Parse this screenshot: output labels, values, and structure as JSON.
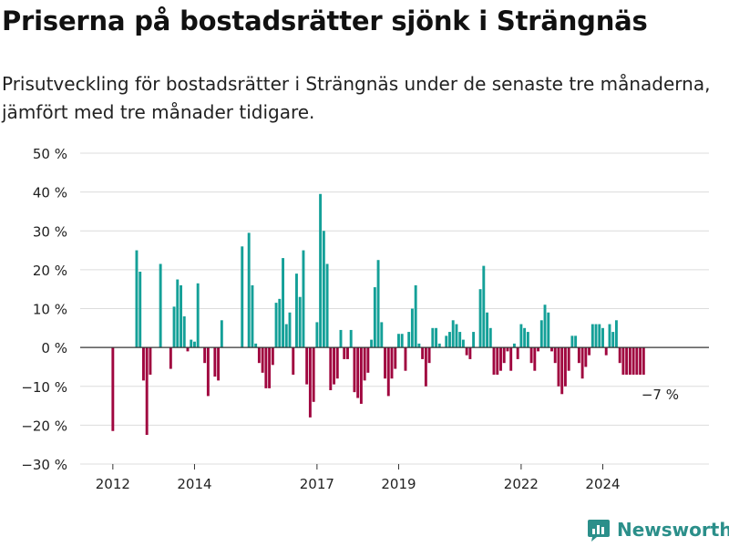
{
  "header": {
    "title": "Priserna på bostadsrätter sjönk i Strängnäs",
    "subtitle": "Prisutveckling för bostadsrätter i Strängnäs under de senaste tre månaderna, jämfört med tre månader tidigare."
  },
  "brand": {
    "label": "Newsworthy",
    "icon": "newsworthy-logo-icon"
  },
  "colors": {
    "positive": "#14a098",
    "negative": "#a0063f",
    "grid": "#dcdcdc",
    "zero": "#333333",
    "brand": "#2b8f8a"
  },
  "chart_data": {
    "type": "bar",
    "title": "",
    "xlabel": "",
    "ylabel": "",
    "ylim": [
      -30,
      50
    ],
    "yticks": [
      -30,
      -20,
      -10,
      0,
      10,
      20,
      30,
      40,
      50
    ],
    "ytick_labels": [
      "−30 %",
      "−20 %",
      "−10 %",
      "0 %",
      "10 %",
      "20 %",
      "30 %",
      "40 %",
      "50 %"
    ],
    "xlim": [
      2011.2,
      2026.6
    ],
    "xticks": [
      2012,
      2014,
      2017,
      2019,
      2022,
      2024
    ],
    "xtick_labels": [
      "2012",
      "2014",
      "2017",
      "2019",
      "2022",
      "2024"
    ],
    "grid": true,
    "legend": "none",
    "annotation": {
      "label": "−7 %",
      "x": 2025.85,
      "value": -7
    },
    "x": [
      2012.0,
      2012.583,
      2012.667,
      2012.75,
      2012.833,
      2012.917,
      2013.167,
      2013.417,
      2013.5,
      2013.583,
      2013.667,
      2013.75,
      2013.833,
      2013.917,
      2014.0,
      2014.083,
      2014.25,
      2014.333,
      2014.5,
      2014.583,
      2014.667,
      2015.167,
      2015.333,
      2015.417,
      2015.5,
      2015.583,
      2015.667,
      2015.75,
      2015.833,
      2015.917,
      2016.0,
      2016.083,
      2016.167,
      2016.25,
      2016.333,
      2016.417,
      2016.5,
      2016.583,
      2016.667,
      2016.75,
      2016.833,
      2016.917,
      2017.0,
      2017.083,
      2017.167,
      2017.25,
      2017.333,
      2017.417,
      2017.5,
      2017.583,
      2017.667,
      2017.75,
      2017.833,
      2017.917,
      2018.0,
      2018.083,
      2018.167,
      2018.25,
      2018.333,
      2018.417,
      2018.5,
      2018.583,
      2018.667,
      2018.75,
      2018.833,
      2018.917,
      2019.0,
      2019.083,
      2019.167,
      2019.25,
      2019.333,
      2019.417,
      2019.5,
      2019.583,
      2019.667,
      2019.75,
      2019.833,
      2019.917,
      2020.0,
      2020.167,
      2020.25,
      2020.333,
      2020.417,
      2020.5,
      2020.583,
      2020.667,
      2020.75,
      2020.833,
      2021.0,
      2021.083,
      2021.167,
      2021.25,
      2021.333,
      2021.417,
      2021.5,
      2021.583,
      2021.667,
      2021.75,
      2021.833,
      2021.917,
      2022.0,
      2022.083,
      2022.167,
      2022.25,
      2022.333,
      2022.417,
      2022.5,
      2022.583,
      2022.667,
      2022.75,
      2022.833,
      2022.917,
      2023.0,
      2023.083,
      2023.167,
      2023.25,
      2023.333,
      2023.417,
      2023.5,
      2023.583,
      2023.667,
      2023.75,
      2023.833,
      2023.917,
      2024.0,
      2024.083,
      2024.167,
      2024.25,
      2024.333,
      2024.417,
      2024.5,
      2024.583,
      2024.667,
      2024.75,
      2024.833,
      2024.917,
      2025.0
    ],
    "values": [
      -21.5,
      25,
      19.5,
      -8.5,
      -22.5,
      -7,
      21.5,
      -5.5,
      10.5,
      17.5,
      16,
      8,
      -1,
      2,
      1.5,
      16.5,
      -4,
      -12.5,
      -7.5,
      -8.5,
      7,
      26,
      29.5,
      16,
      1,
      -4,
      -6.5,
      -10.5,
      -10.5,
      -4.5,
      11.5,
      12.5,
      23,
      6,
      9,
      -7,
      19,
      13,
      25,
      -9.5,
      -18,
      -14,
      6.5,
      39.5,
      30,
      21.5,
      -11,
      -9.5,
      -8,
      4.5,
      -3,
      -3,
      4.5,
      -11.5,
      -13,
      -14.5,
      -8.5,
      -6.5,
      2,
      15.5,
      22.5,
      6.5,
      -8,
      -12.5,
      -8,
      -5.5,
      3.5,
      3.5,
      -6,
      4,
      10,
      16,
      1,
      -3,
      -10,
      -4,
      5,
      5,
      1,
      3,
      4,
      7,
      6,
      4,
      2,
      -2,
      -3,
      4,
      15,
      21,
      9,
      5,
      -7,
      -7,
      -6,
      -4,
      -1,
      -6,
      1,
      -3,
      6,
      5,
      4,
      -4,
      -6,
      -1,
      7,
      11,
      9,
      -1,
      -4,
      -10,
      -12,
      -10,
      -6,
      3,
      3,
      -4,
      -8,
      -5,
      -2,
      6,
      6,
      6,
      5,
      -2,
      6,
      4,
      7,
      -4,
      -7,
      -7,
      -7,
      -7,
      -7,
      -7,
      -7
    ]
  }
}
